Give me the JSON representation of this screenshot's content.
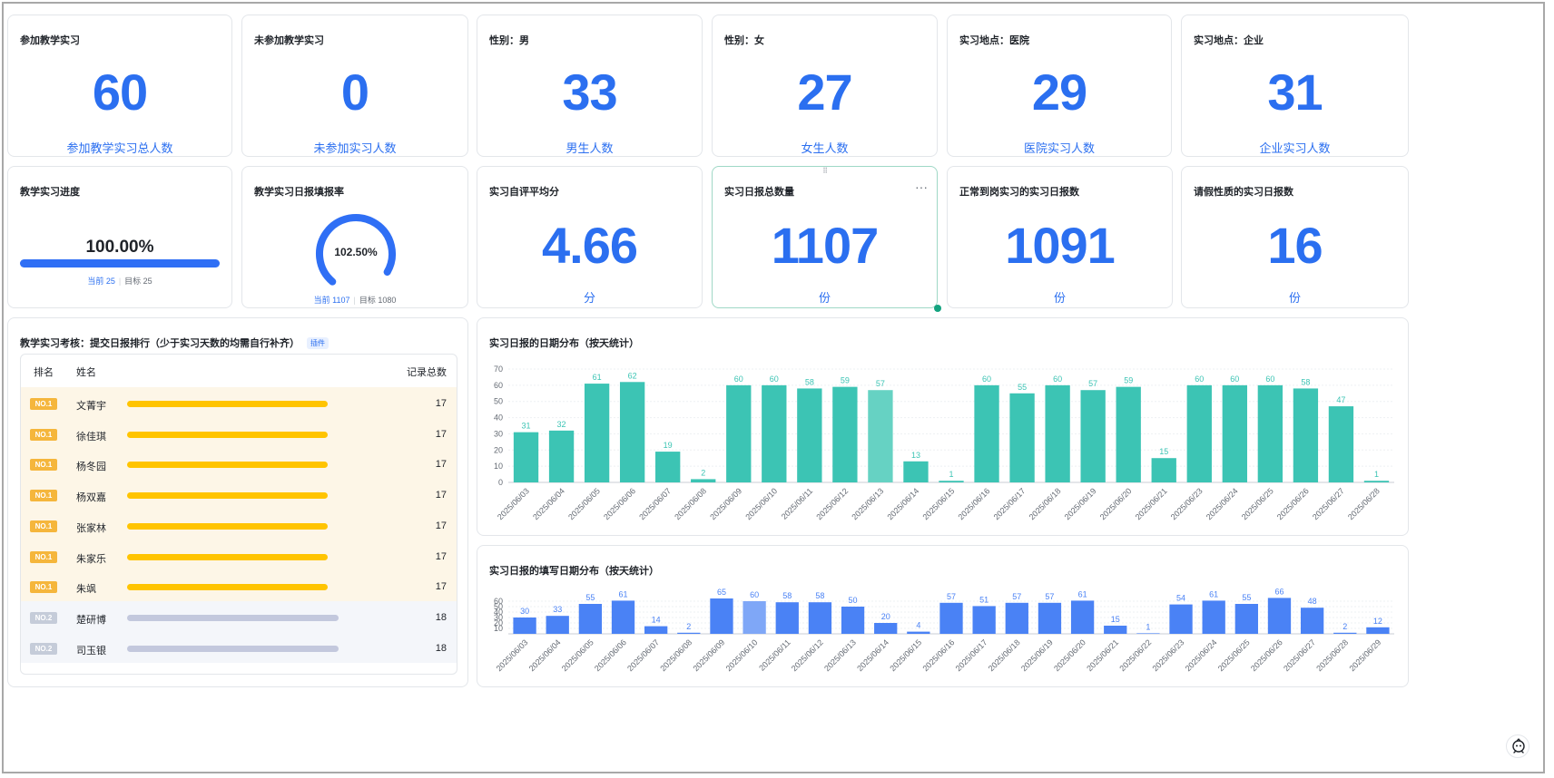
{
  "kpis_row1": [
    {
      "title": "参加教学实习",
      "value": "60",
      "sub": "参加教学实习总人数"
    },
    {
      "title": "未参加教学实习",
      "value": "0",
      "sub": "未参加实习人数"
    },
    {
      "title": "性别：男",
      "value": "33",
      "sub": "男生人数"
    },
    {
      "title": "性别：女",
      "value": "27",
      "sub": "女生人数"
    },
    {
      "title": "实习地点：医院",
      "value": "29",
      "sub": "医院实习人数"
    },
    {
      "title": "实习地点：企业",
      "value": "31",
      "sub": "企业实习人数"
    }
  ],
  "progress": {
    "title": "教学实习进度",
    "percent_text": "100.00%",
    "fraction": 1.0,
    "current_label": "当前 25",
    "target_label": "目标 25"
  },
  "gauge": {
    "title": "教学实习日报填报率",
    "percent_text": "102.50%",
    "fraction": 1.0,
    "current_label": "当前 1107",
    "target_label": "目标 1080",
    "color": "#2f6ff5"
  },
  "kpis_row2": [
    {
      "title": "实习自评平均分",
      "value": "4.66",
      "sub": "分"
    },
    {
      "title": "实习日报总数量",
      "value": "1107",
      "sub": "份"
    },
    {
      "title": "正常到岗实习的实习日报数",
      "value": "1091",
      "sub": "份"
    },
    {
      "title": "请假性质的实习日报数",
      "value": "16",
      "sub": "份"
    }
  ],
  "ranking": {
    "title": "教学实习考核：提交日报排行（少于实习天数的均需自行补齐）",
    "tag": "插件",
    "headers": {
      "rank": "排名",
      "name": "姓名",
      "total": "记录总数"
    },
    "rows": [
      {
        "rank": "NO.1",
        "name": "文菁宇",
        "value": "17",
        "level": "gold",
        "bar_fraction": 0.92
      },
      {
        "rank": "NO.1",
        "name": "徐佳琪",
        "value": "17",
        "level": "gold",
        "bar_fraction": 0.92
      },
      {
        "rank": "NO.1",
        "name": "杨冬园",
        "value": "17",
        "level": "gold",
        "bar_fraction": 0.92
      },
      {
        "rank": "NO.1",
        "name": "杨双嘉",
        "value": "17",
        "level": "gold",
        "bar_fraction": 0.92
      },
      {
        "rank": "NO.1",
        "name": "张家林",
        "value": "17",
        "level": "gold",
        "bar_fraction": 0.92
      },
      {
        "rank": "NO.1",
        "name": "朱家乐",
        "value": "17",
        "level": "gold",
        "bar_fraction": 0.92
      },
      {
        "rank": "NO.1",
        "name": "朱飒",
        "value": "17",
        "level": "gold",
        "bar_fraction": 0.92
      },
      {
        "rank": "NO.2",
        "name": "楚研博",
        "value": "18",
        "level": "silver",
        "bar_fraction": 0.97
      },
      {
        "rank": "NO.2",
        "name": "司玉银",
        "value": "18",
        "level": "silver",
        "bar_fraction": 0.97
      }
    ]
  },
  "chart_data": [
    {
      "type": "bar",
      "title": "实习日报的日期分布（按天统计）",
      "categories": [
        "2025/06/03",
        "2025/06/04",
        "2025/06/05",
        "2025/06/06",
        "2025/06/07",
        "2025/06/08",
        "2025/06/09",
        "2025/06/10",
        "2025/06/11",
        "2025/06/12",
        "2025/06/13",
        "2025/06/14",
        "2025/06/15",
        "2025/06/16",
        "2025/06/17",
        "2025/06/18",
        "2025/06/19",
        "2025/06/20",
        "2025/06/21",
        "2025/06/23",
        "2025/06/24",
        "2025/06/25",
        "2025/06/26",
        "2025/06/27",
        "2025/06/28"
      ],
      "values": [
        31,
        32,
        61,
        62,
        19,
        2,
        60,
        60,
        58,
        59,
        57,
        13,
        1,
        60,
        55,
        60,
        57,
        59,
        15,
        60,
        60,
        60,
        58,
        47,
        1
      ],
      "ylim": [
        0,
        70
      ],
      "yticks": [
        0,
        10,
        20,
        30,
        40,
        50,
        60,
        70
      ],
      "color": "#3cc4b4",
      "highlight_color": "#66d2c3",
      "highlight_index": 10,
      "grid": true
    },
    {
      "type": "bar",
      "title": "实习日报的填写日期分布（按天统计）",
      "categories": [
        "2025/06/03",
        "2025/06/04",
        "2025/06/05",
        "2025/06/06",
        "2025/06/07",
        "2025/06/08",
        "2025/06/09",
        "2025/06/10",
        "2025/06/11",
        "2025/06/12",
        "2025/06/13",
        "2025/06/14",
        "2025/06/15",
        "2025/06/16",
        "2025/06/17",
        "2025/06/18",
        "2025/06/19",
        "2025/06/20",
        "2025/06/21",
        "2025/06/22",
        "2025/06/23",
        "2025/06/24",
        "2025/06/25",
        "2025/06/26",
        "2025/06/27",
        "2025/06/28",
        "2025/06/29"
      ],
      "values": [
        30,
        33,
        55,
        61,
        14,
        2,
        65,
        60,
        58,
        58,
        50,
        20,
        4,
        57,
        51,
        57,
        57,
        61,
        15,
        1,
        54,
        61,
        55,
        66,
        48,
        2,
        12
      ],
      "ylim": [
        0,
        70
      ],
      "yticks": [
        10,
        20,
        30,
        40,
        50,
        60
      ],
      "color": "#4a82f5",
      "highlight_color": "#7fa7f7",
      "highlight_index": 7,
      "grid": true
    }
  ]
}
